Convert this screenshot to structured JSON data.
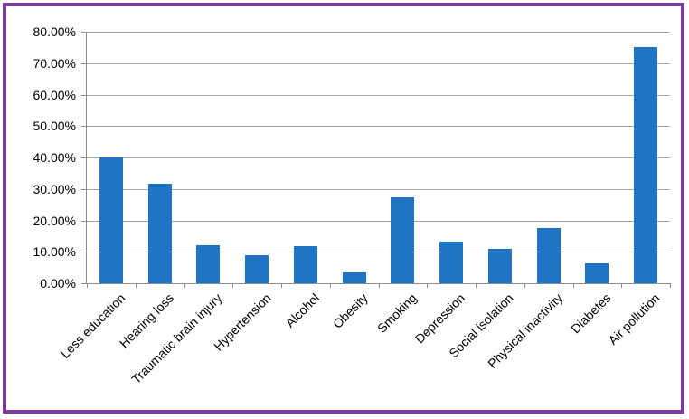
{
  "chart_data": {
    "type": "bar",
    "title": "",
    "xlabel": "",
    "ylabel": "",
    "categories": [
      "Less education",
      "Hearing loss",
      "Traumatic brain injury",
      "Hypertension",
      "Alcohol",
      "Obesity",
      "Smoking",
      "Depression",
      "Social isolation",
      "Physical inactivity",
      "Diabetes",
      "Air pollution"
    ],
    "values": [
      40.0,
      31.7,
      12.1,
      8.9,
      11.8,
      3.4,
      27.4,
      13.2,
      11.0,
      17.7,
      6.4,
      75.0
    ],
    "value_unit": "%",
    "ylim": [
      0,
      80
    ],
    "ytick_step": 10,
    "ytick_labels": [
      "80.00%",
      "70.00%",
      "60.00%",
      "50.00%",
      "40.00%",
      "30.00%",
      "20.00%",
      "10.00%",
      "0.00%"
    ],
    "grid": true,
    "legend": false,
    "x_label_rotation_deg": 45,
    "colors": {
      "bar": "#1F75C4",
      "gridline": "#A6A6A6",
      "axis": "#8C8C8C",
      "frame_border": "#7B3BA3",
      "text": "#000000",
      "background": "#FFFFFF"
    }
  }
}
